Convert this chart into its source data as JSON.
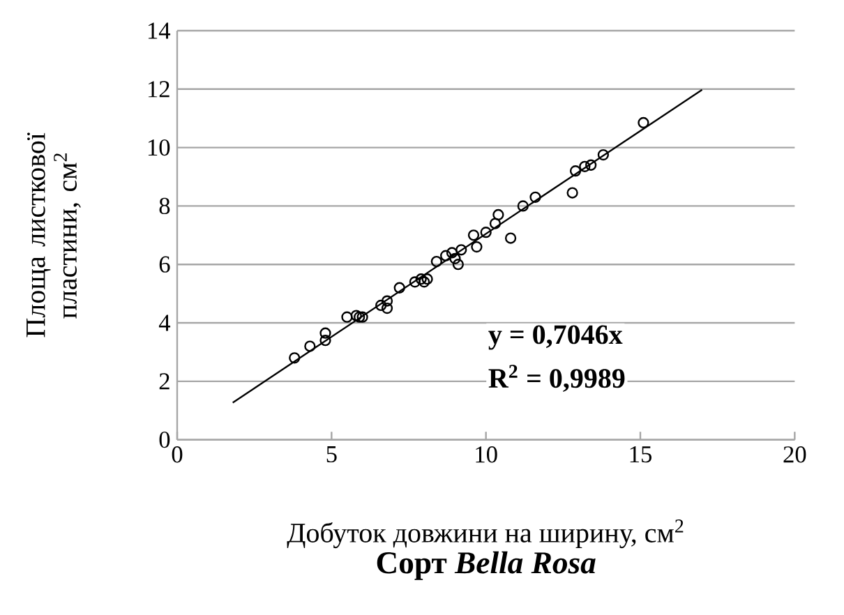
{
  "chart_data": {
    "type": "scatter",
    "title": "Сорт *Bella Rosa*",
    "xlabel": "Добуток довжини на ширину, см$^{2}$",
    "ylabel": "Площа листкової пластини, см$^{2}$",
    "annotations": [
      "y = 0,7046x",
      "R$^{2}$ = 0,9989"
    ],
    "xlim": [
      0,
      20
    ],
    "ylim": [
      0,
      14
    ],
    "xticks": [
      0,
      5,
      10,
      15,
      20
    ],
    "yticks": [
      0,
      2,
      4,
      6,
      8,
      10,
      12,
      14
    ],
    "grid": "y",
    "marker": "circle",
    "series": [
      {
        "color": "#000000",
        "x": [
          3.8,
          4.3,
          4.8,
          4.8,
          5.5,
          5.8,
          5.9,
          6.0,
          6.6,
          6.8,
          6.8,
          7.2,
          7.7,
          7.9,
          8.0,
          8.1,
          8.4,
          8.7,
          8.9,
          9.0,
          9.1,
          9.2,
          9.6,
          9.7,
          10.0,
          10.3,
          10.4,
          10.8,
          11.2,
          11.6,
          12.8,
          12.9,
          13.2,
          13.4,
          13.8,
          15.1
        ],
        "values": [
          2.8,
          3.2,
          3.4,
          3.65,
          4.2,
          4.25,
          4.2,
          4.2,
          4.6,
          4.5,
          4.75,
          5.2,
          5.4,
          5.5,
          5.4,
          5.5,
          6.1,
          6.3,
          6.4,
          6.2,
          6.0,
          6.5,
          7.0,
          6.6,
          7.1,
          7.4,
          7.7,
          6.9,
          8.0,
          8.3,
          8.45,
          9.2,
          9.35,
          9.4,
          9.75,
          10.85
        ]
      },
      {
        "type": "line",
        "color": "#000000",
        "marker": "none",
        "x": [
          1.8,
          17
        ],
        "values": [
          1.27,
          11.98
        ]
      }
    ]
  }
}
